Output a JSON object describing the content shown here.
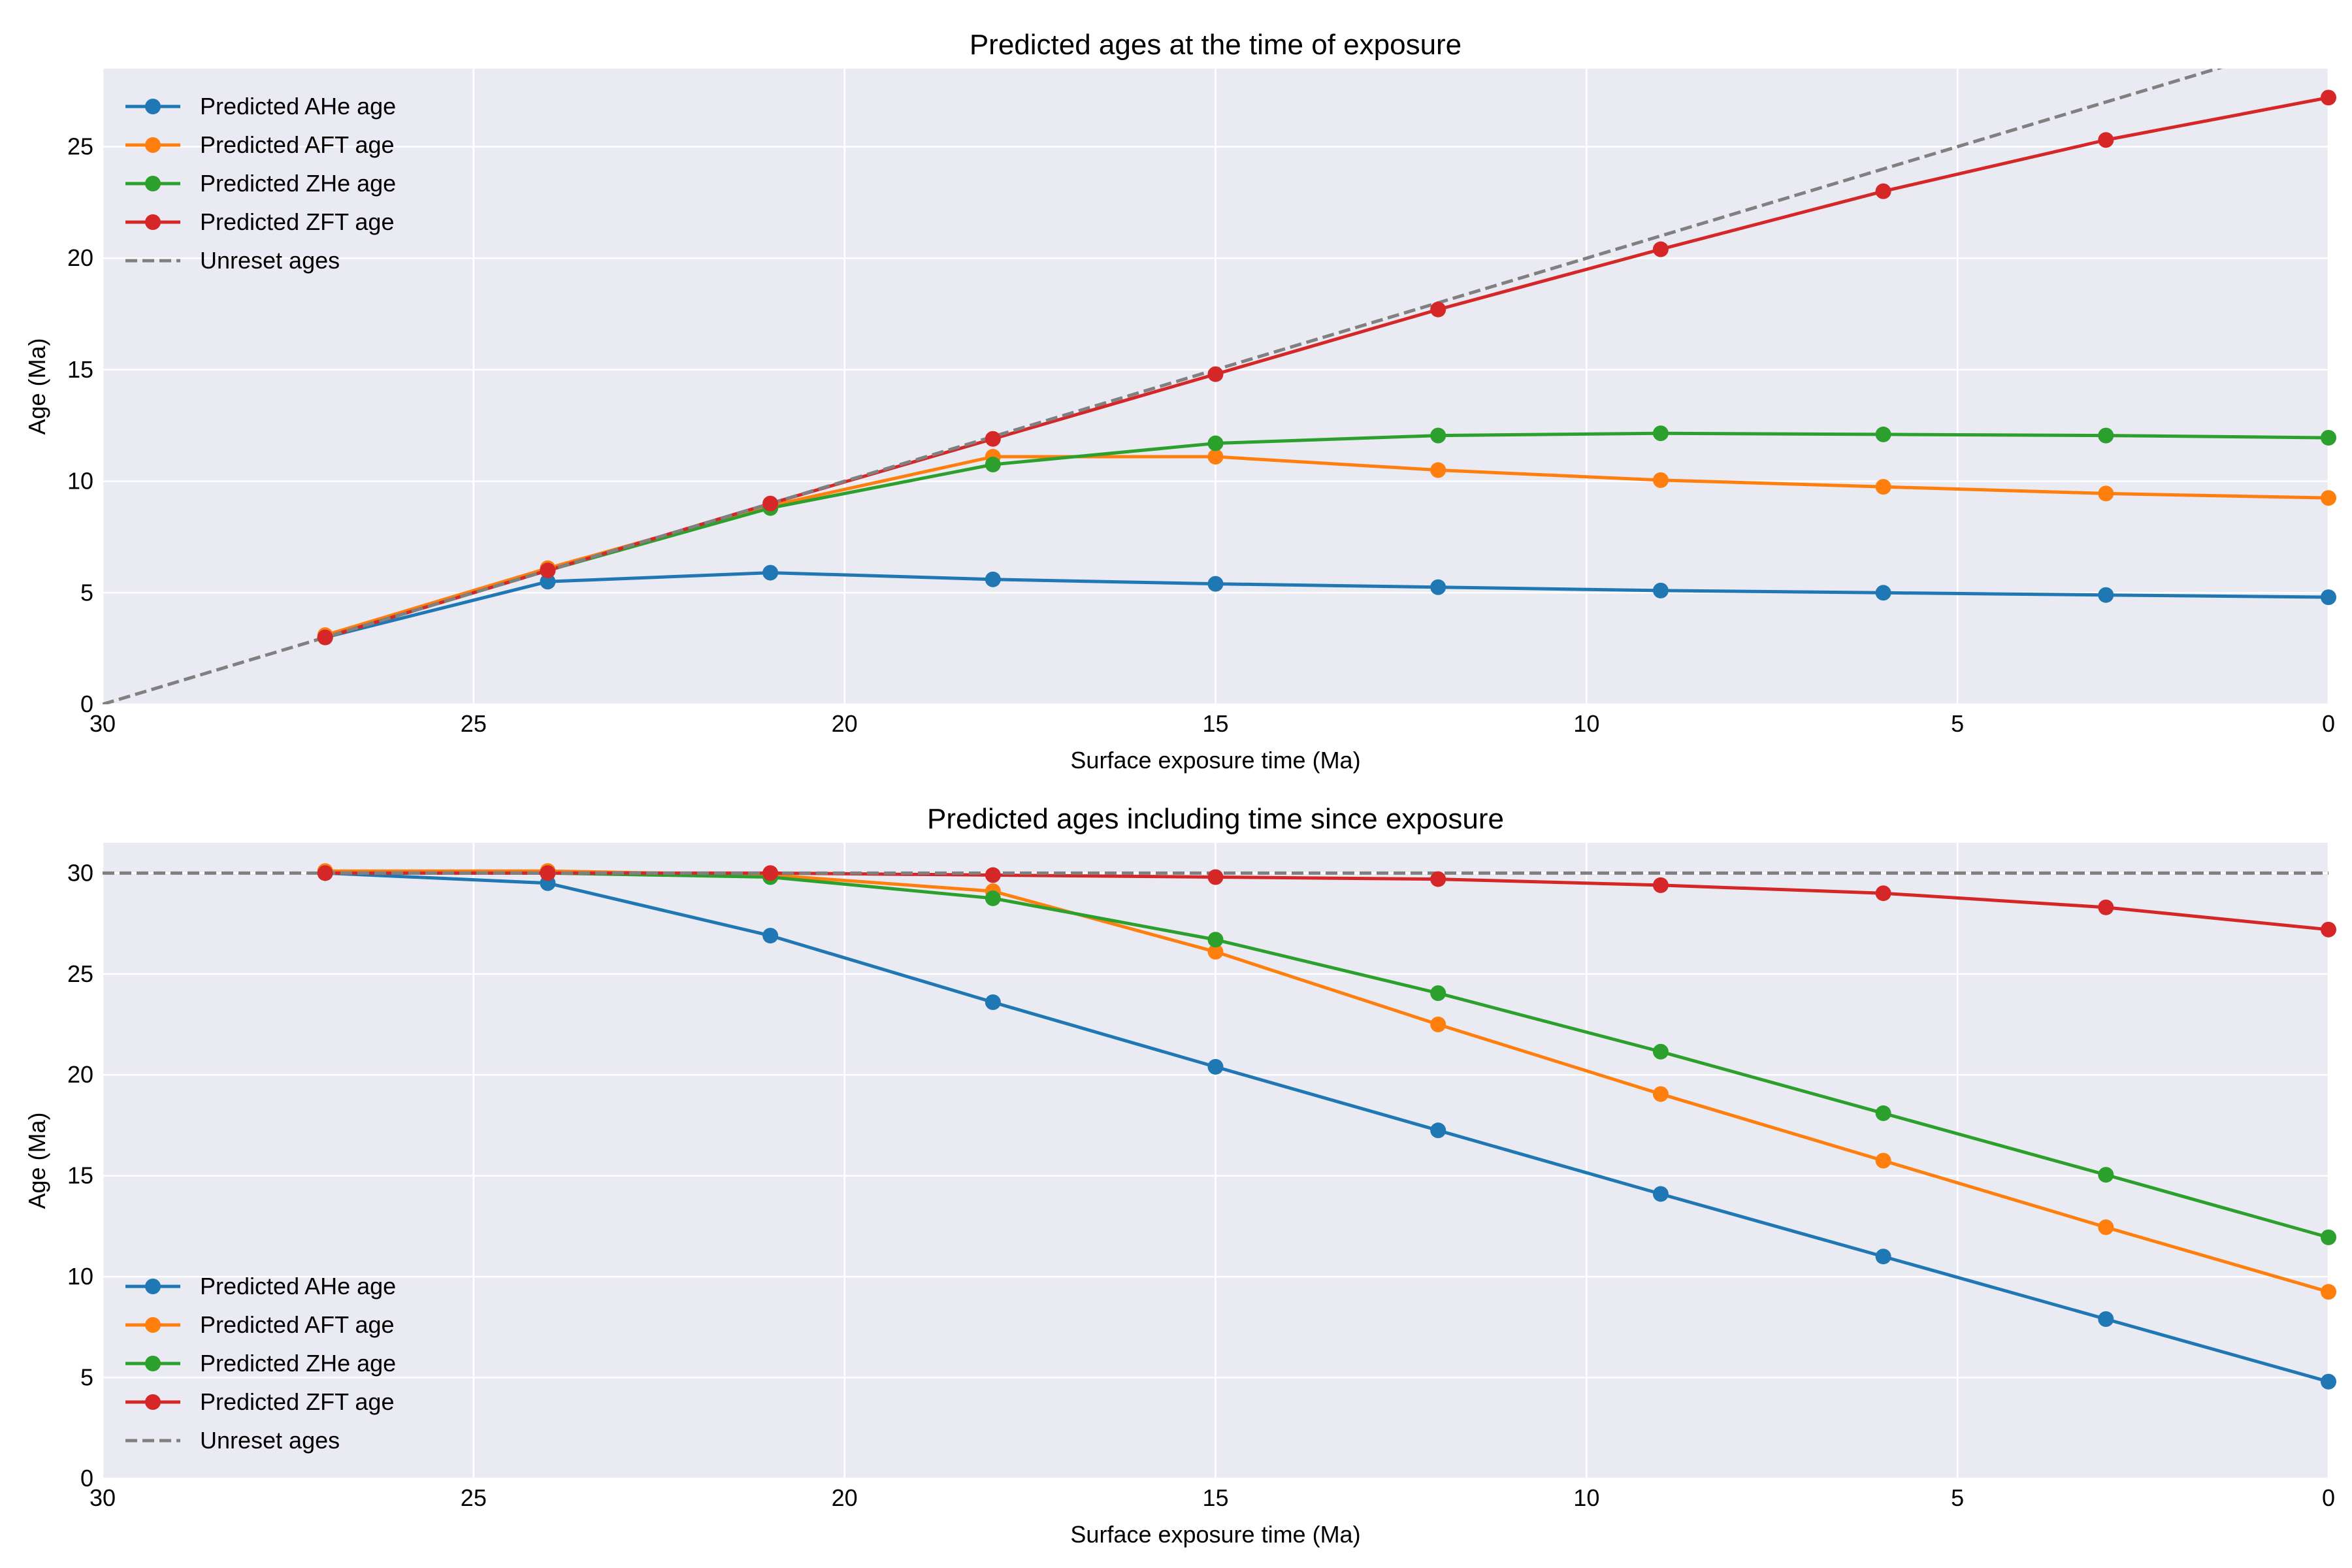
{
  "chart_data": [
    {
      "type": "line",
      "title": "Predicted ages at the time of exposure",
      "xlabel": "Surface exposure time (Ma)",
      "ylabel": "Age (Ma)",
      "xlim": [
        30,
        0
      ],
      "ylim": [
        0,
        28.5
      ],
      "xticks": [
        30,
        25,
        20,
        15,
        10,
        5,
        0
      ],
      "yticks": [
        0,
        5,
        10,
        15,
        20,
        25
      ],
      "grid": true,
      "legend_position": "upper-left",
      "x": [
        27,
        24,
        21,
        18,
        15,
        12,
        9,
        6,
        3,
        0
      ],
      "series": [
        {
          "name": "Predicted AHe age",
          "color": "#1f77b4",
          "values": [
            3.0,
            5.5,
            5.9,
            5.6,
            5.4,
            5.25,
            5.1,
            5.0,
            4.9,
            4.8
          ]
        },
        {
          "name": "Predicted AFT age",
          "color": "#ff7f0e",
          "values": [
            3.1,
            6.1,
            8.9,
            11.1,
            11.1,
            10.5,
            10.05,
            9.75,
            9.45,
            9.25
          ]
        },
        {
          "name": "Predicted ZHe age",
          "color": "#2ca02c",
          "values": [
            3.0,
            6.0,
            8.8,
            10.75,
            11.7,
            12.05,
            12.15,
            12.1,
            12.05,
            11.95
          ]
        },
        {
          "name": "Predicted ZFT age",
          "color": "#d62728",
          "values": [
            3.0,
            6.0,
            9.0,
            11.9,
            14.8,
            17.7,
            20.4,
            23.0,
            25.3,
            27.2
          ]
        }
      ],
      "reference_line": {
        "name": "Unreset ages",
        "color": "#808080",
        "style": "dashed",
        "x": [
          30,
          0
        ],
        "values": [
          0,
          30
        ]
      }
    },
    {
      "type": "line",
      "title": "Predicted ages including time since exposure",
      "xlabel": "Surface exposure time (Ma)",
      "ylabel": "Age (Ma)",
      "xlim": [
        30,
        0
      ],
      "ylim": [
        0,
        31.5
      ],
      "xticks": [
        30,
        25,
        20,
        15,
        10,
        5,
        0
      ],
      "yticks": [
        0,
        5,
        10,
        15,
        20,
        25,
        30
      ],
      "grid": true,
      "legend_position": "lower-left",
      "x": [
        27,
        24,
        21,
        18,
        15,
        12,
        9,
        6,
        3,
        0
      ],
      "series": [
        {
          "name": "Predicted AHe age",
          "color": "#1f77b4",
          "values": [
            30.0,
            29.5,
            26.9,
            23.6,
            20.4,
            17.25,
            14.1,
            11.0,
            7.9,
            4.8
          ]
        },
        {
          "name": "Predicted AFT age",
          "color": "#ff7f0e",
          "values": [
            30.1,
            30.1,
            29.9,
            29.1,
            26.1,
            22.5,
            19.05,
            15.75,
            12.45,
            9.25
          ]
        },
        {
          "name": "Predicted ZHe age",
          "color": "#2ca02c",
          "values": [
            30.0,
            30.0,
            29.8,
            28.75,
            26.7,
            24.05,
            21.15,
            18.1,
            15.05,
            11.95
          ]
        },
        {
          "name": "Predicted ZFT age",
          "color": "#d62728",
          "values": [
            30.0,
            30.0,
            30.0,
            29.9,
            29.8,
            29.7,
            29.4,
            29.0,
            28.3,
            27.2
          ]
        }
      ],
      "reference_line": {
        "name": "Unreset ages",
        "color": "#808080",
        "style": "dashed",
        "x": [
          30,
          0
        ],
        "values": [
          30,
          30
        ]
      }
    }
  ]
}
